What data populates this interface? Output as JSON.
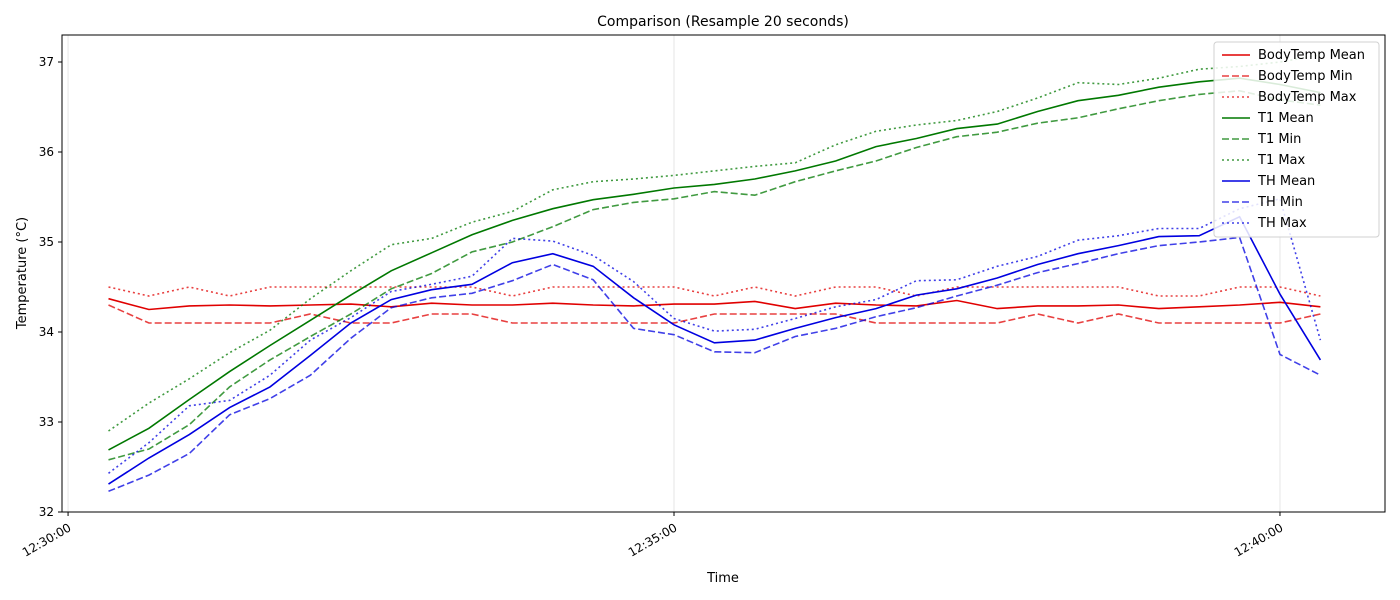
{
  "chart_data": {
    "type": "line",
    "title": "Comparison (Resample 20 seconds)",
    "xlabel": "Time",
    "ylabel": "Temperature (°C)",
    "ylim": [
      32,
      37.3
    ],
    "yticks": [
      32,
      33,
      34,
      35,
      36,
      37
    ],
    "xlim_seconds": [
      -3,
      652
    ],
    "xticks": [
      {
        "label": "12:30:00",
        "seconds": 0
      },
      {
        "label": "12:35:00",
        "seconds": 300
      },
      {
        "label": "12:40:00",
        "seconds": 600
      }
    ],
    "x_seconds_from_12_30_00": [
      20,
      40,
      60,
      80,
      100,
      120,
      140,
      160,
      180,
      200,
      220,
      240,
      260,
      280,
      300,
      320,
      340,
      360,
      380,
      400,
      420,
      440,
      460,
      480,
      500,
      520,
      540,
      560,
      580,
      600,
      620
    ],
    "grid": "x-only",
    "legend_position": "top-right",
    "series": [
      {
        "name": "BodyTemp Mean",
        "color": "#e00000",
        "dash": "solid",
        "opacity": 1,
        "values": [
          34.37,
          34.25,
          34.29,
          34.3,
          34.29,
          34.3,
          34.31,
          34.28,
          34.32,
          34.3,
          34.3,
          34.32,
          34.3,
          34.29,
          34.31,
          34.31,
          34.34,
          34.26,
          34.32,
          34.3,
          34.29,
          34.35,
          34.26,
          34.29,
          34.29,
          34.3,
          34.26,
          34.28,
          34.3,
          34.33,
          34.28
        ]
      },
      {
        "name": "BodyTemp Min",
        "color": "#e00000",
        "dash": "dashed",
        "opacity": 0.75,
        "values": [
          34.3,
          34.1,
          34.1,
          34.1,
          34.1,
          34.2,
          34.1,
          34.1,
          34.2,
          34.2,
          34.1,
          34.1,
          34.1,
          34.1,
          34.1,
          34.2,
          34.2,
          34.2,
          34.2,
          34.1,
          34.1,
          34.1,
          34.1,
          34.2,
          34.1,
          34.2,
          34.1,
          34.1,
          34.1,
          34.1,
          34.2
        ]
      },
      {
        "name": "BodyTemp Max",
        "color": "#e00000",
        "dash": "dotted",
        "opacity": 0.75,
        "values": [
          34.5,
          34.4,
          34.5,
          34.4,
          34.5,
          34.5,
          34.5,
          34.5,
          34.5,
          34.5,
          34.4,
          34.5,
          34.5,
          34.5,
          34.5,
          34.4,
          34.5,
          34.4,
          34.5,
          34.5,
          34.4,
          34.5,
          34.5,
          34.5,
          34.5,
          34.5,
          34.4,
          34.4,
          34.5,
          34.5,
          34.4
        ]
      },
      {
        "name": "T1 Mean",
        "color": "#007800",
        "dash": "solid",
        "opacity": 1,
        "values": [
          32.69,
          32.93,
          33.25,
          33.56,
          33.85,
          34.13,
          34.41,
          34.68,
          34.88,
          35.08,
          35.24,
          35.37,
          35.47,
          35.53,
          35.6,
          35.64,
          35.7,
          35.79,
          35.9,
          36.06,
          36.15,
          36.26,
          36.31,
          36.45,
          36.57,
          36.63,
          36.72,
          36.78,
          36.82,
          36.75,
          36.66
        ]
      },
      {
        "name": "T1 Min",
        "color": "#007800",
        "dash": "dashed",
        "opacity": 0.75,
        "values": [
          32.58,
          32.7,
          32.97,
          33.39,
          33.69,
          33.95,
          34.2,
          34.48,
          34.65,
          34.89,
          35.0,
          35.17,
          35.36,
          35.44,
          35.48,
          35.56,
          35.52,
          35.67,
          35.79,
          35.9,
          36.05,
          36.17,
          36.22,
          36.32,
          36.38,
          36.48,
          36.57,
          36.64,
          36.68,
          36.58,
          36.52
        ]
      },
      {
        "name": "T1 Max",
        "color": "#007800",
        "dash": "dotted",
        "opacity": 0.75,
        "values": [
          32.9,
          33.21,
          33.48,
          33.77,
          34.02,
          34.37,
          34.68,
          34.97,
          35.04,
          35.22,
          35.34,
          35.58,
          35.67,
          35.7,
          35.74,
          35.79,
          35.84,
          35.88,
          36.08,
          36.23,
          36.3,
          36.35,
          36.45,
          36.6,
          36.77,
          36.75,
          36.82,
          36.92,
          36.95,
          37.0,
          37.08
        ]
      },
      {
        "name": "TH Mean",
        "color": "#0000e0",
        "dash": "solid",
        "opacity": 1,
        "values": [
          32.31,
          32.6,
          32.86,
          33.16,
          33.39,
          33.74,
          34.1,
          34.36,
          34.47,
          34.53,
          34.77,
          34.87,
          34.73,
          34.38,
          34.08,
          33.88,
          33.91,
          34.04,
          34.16,
          34.26,
          34.41,
          34.48,
          34.6,
          34.75,
          34.87,
          34.96,
          35.06,
          35.07,
          35.28,
          34.42,
          33.69
        ]
      },
      {
        "name": "TH Min",
        "color": "#0000e0",
        "dash": "dashed",
        "opacity": 0.75,
        "values": [
          32.23,
          32.41,
          32.65,
          33.08,
          33.26,
          33.52,
          33.93,
          34.27,
          34.38,
          34.43,
          34.57,
          34.75,
          34.58,
          34.04,
          33.97,
          33.78,
          33.77,
          33.95,
          34.04,
          34.17,
          34.27,
          34.4,
          34.52,
          34.66,
          34.76,
          34.87,
          34.96,
          35.0,
          35.05,
          33.75,
          33.52
        ]
      },
      {
        "name": "TH Max",
        "color": "#0000e0",
        "dash": "dotted",
        "opacity": 0.75,
        "values": [
          32.43,
          32.77,
          33.18,
          33.24,
          33.52,
          33.91,
          34.16,
          34.45,
          34.53,
          34.62,
          35.04,
          35.01,
          34.85,
          34.56,
          34.15,
          34.01,
          34.03,
          34.15,
          34.28,
          34.36,
          34.57,
          34.58,
          34.73,
          34.84,
          35.02,
          35.07,
          35.15,
          35.15,
          35.37,
          35.48,
          33.91
        ]
      }
    ]
  }
}
